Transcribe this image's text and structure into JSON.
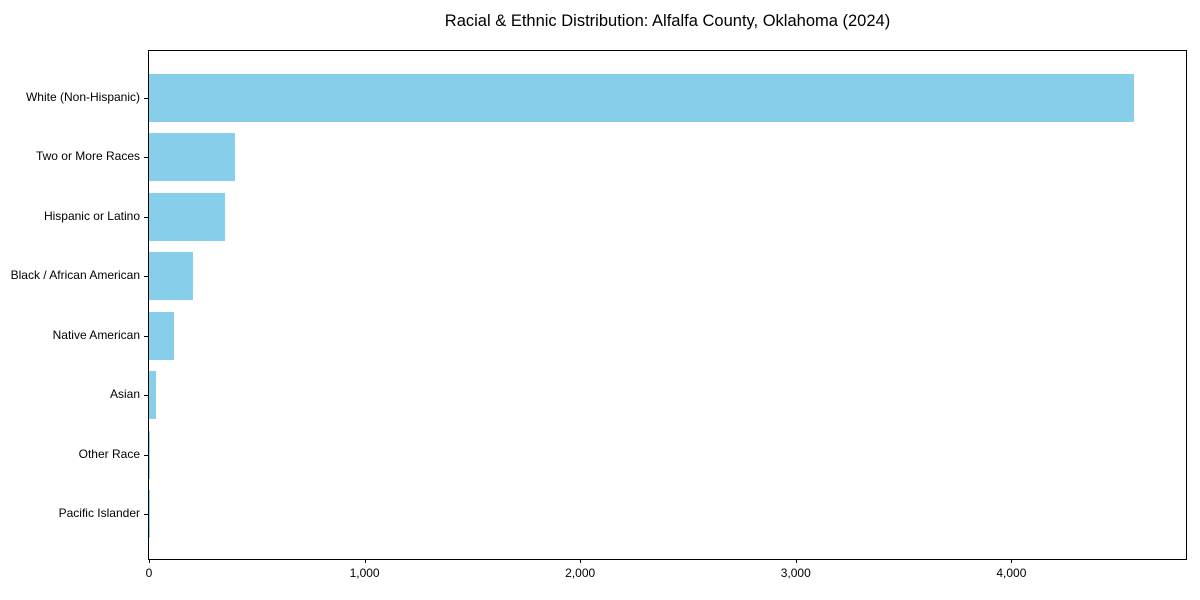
{
  "title": "Racial & Ethnic Distribution: Alfalfa County, Oklahoma (2024)",
  "colors": {
    "bar": "#87CEEB",
    "axis": "#000000",
    "background": "#ffffff",
    "text": "#000000"
  },
  "chart_data": {
    "type": "bar",
    "orientation": "horizontal",
    "title": "Racial & Ethnic Distribution: Alfalfa County, Oklahoma (2024)",
    "categories": [
      "White (Non-Hispanic)",
      "Two or More Races",
      "Hispanic or Latino",
      "Black / African American",
      "Native American",
      "Asian",
      "Other Race",
      "Pacific Islander"
    ],
    "values": [
      4570,
      397,
      351,
      203,
      114,
      33,
      5,
      2
    ],
    "bar_color": "#87CEEB",
    "xlabel": "",
    "ylabel": "",
    "xlim": [
      0,
      4810
    ],
    "xticks": {
      "values": [
        0,
        1000,
        2000,
        3000,
        4000
      ],
      "labels": [
        "0",
        "1,000",
        "2,000",
        "3,000",
        "4,000"
      ]
    },
    "grid": false,
    "legend": null
  }
}
